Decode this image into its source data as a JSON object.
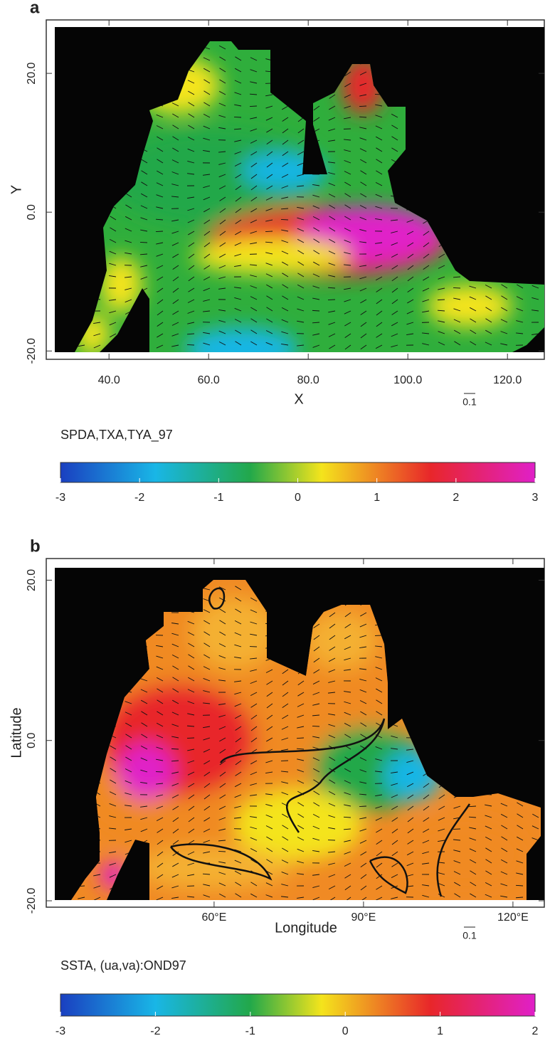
{
  "chart_data": [
    {
      "type": "vector-field-map",
      "panel_label": "a",
      "xlabel": "X",
      "ylabel": "Y",
      "xlim": [
        27.4,
        127.4
      ],
      "xticks": [
        {
          "value": 40,
          "label": "40.0"
        },
        {
          "value": 60,
          "label": "60.0"
        },
        {
          "value": 80,
          "label": "80.0"
        },
        {
          "value": 100,
          "label": "100.0"
        },
        {
          "value": 120,
          "label": "120.0"
        }
      ],
      "ylim": [
        -21.2,
        27.7
      ],
      "yticks": [
        {
          "value": -20,
          "label": "-20.0"
        },
        {
          "value": 0,
          "label": "0.0"
        },
        {
          "value": 20,
          "label": "20.0"
        }
      ],
      "vector_scale_label": "0.1",
      "colorbar": {
        "title": "SPDA,TXA,TYA_97",
        "lim": [
          -3,
          3
        ],
        "ticks": [
          -3,
          -2,
          -1,
          0,
          1,
          2,
          3
        ]
      }
    },
    {
      "type": "vector-field-map",
      "panel_label": "b",
      "xlabel": "Longitude",
      "ylabel": "Latitude",
      "xlim": [
        26.3,
        126.3
      ],
      "xticks": [
        {
          "value": 60,
          "label": "60°E"
        },
        {
          "value": 90,
          "label": "90°E"
        },
        {
          "value": 120,
          "label": "120°E"
        }
      ],
      "ylim": [
        -20.8,
        22.7
      ],
      "yticks": [
        {
          "value": -20,
          "label": "-20.0"
        },
        {
          "value": 0,
          "label": "0.0"
        },
        {
          "value": 20,
          "label": "20.0"
        }
      ],
      "vector_scale_label": "0.1",
      "colorbar": {
        "title": "SSTA, (ua,va):OND97",
        "lim": [
          -3,
          2
        ],
        "ticks": [
          -3,
          -2,
          -1,
          0,
          1,
          2
        ]
      }
    }
  ]
}
